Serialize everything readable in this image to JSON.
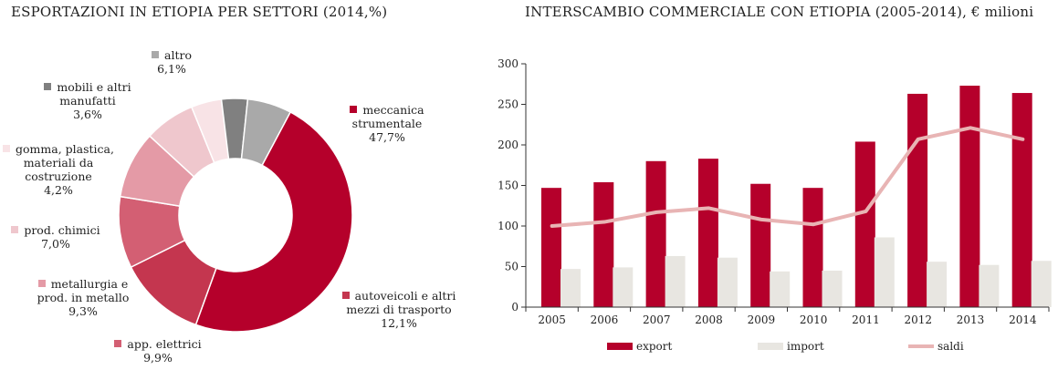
{
  "titles": {
    "left": "ESPORTAZIONI IN ETIOPIA PER SETTORI (2014,%)",
    "right": "INTERSCAMBIO COMMERCIALE CON ETIOPIA (2005-2014), € milioni"
  },
  "chart_data": [
    {
      "type": "pie",
      "title": "ESPORTAZIONI IN ETIOPIA PER SETTORI (2014,%)",
      "slices": [
        {
          "label": "meccanica strumentale",
          "value": 47.7,
          "value_label": "47,7%",
          "color": "#b5002b"
        },
        {
          "label": "autoveicoli e altri mezzi di trasporto",
          "value": 12.1,
          "value_label": "12,1%",
          "color": "#c4364f"
        },
        {
          "label": "app. elettrici",
          "value": 9.9,
          "value_label": "9,9%",
          "color": "#d35f73"
        },
        {
          "label": "metallurgia e prod. in metallo",
          "value": 9.3,
          "value_label": "9,3%",
          "color": "#e49aa6"
        },
        {
          "label": "prod. chimici",
          "value": 7.0,
          "value_label": "7,0%",
          "color": "#efc7cd"
        },
        {
          "label": "gomma, plastica, materiali da costruzione",
          "value": 4.2,
          "value_label": "4,2%",
          "color": "#f8e3e6"
        },
        {
          "label": "mobili e altri manufatti",
          "value": 3.6,
          "value_label": "3,6%",
          "color": "#808080"
        },
        {
          "label": "altro",
          "value": 6.1,
          "value_label": "6,1%",
          "color": "#a9a9a9"
        }
      ]
    },
    {
      "type": "bar",
      "title": "INTERSCAMBIO COMMERCIALE CON ETIOPIA (2005-2014), € milioni",
      "categories": [
        "2005",
        "2006",
        "2007",
        "2008",
        "2009",
        "2010",
        "2011",
        "2012",
        "2013",
        "2014"
      ],
      "ylim": [
        0,
        300
      ],
      "yticks": [
        0,
        50,
        100,
        150,
        200,
        250,
        300
      ],
      "series": [
        {
          "name": "export",
          "type": "bar",
          "color": "#b5002b",
          "values": [
            147,
            154,
            180,
            183,
            152,
            147,
            204,
            263,
            273,
            264
          ]
        },
        {
          "name": "import",
          "type": "bar",
          "color": "#e8e6e1",
          "values": [
            47,
            49,
            63,
            61,
            44,
            45,
            86,
            56,
            52,
            57
          ]
        },
        {
          "name": "saldi",
          "type": "line",
          "color": "#e8b4b4",
          "values": [
            100,
            105,
            117,
            122,
            108,
            102,
            118,
            207,
            221,
            207
          ]
        }
      ],
      "legend": "bottom"
    }
  ]
}
